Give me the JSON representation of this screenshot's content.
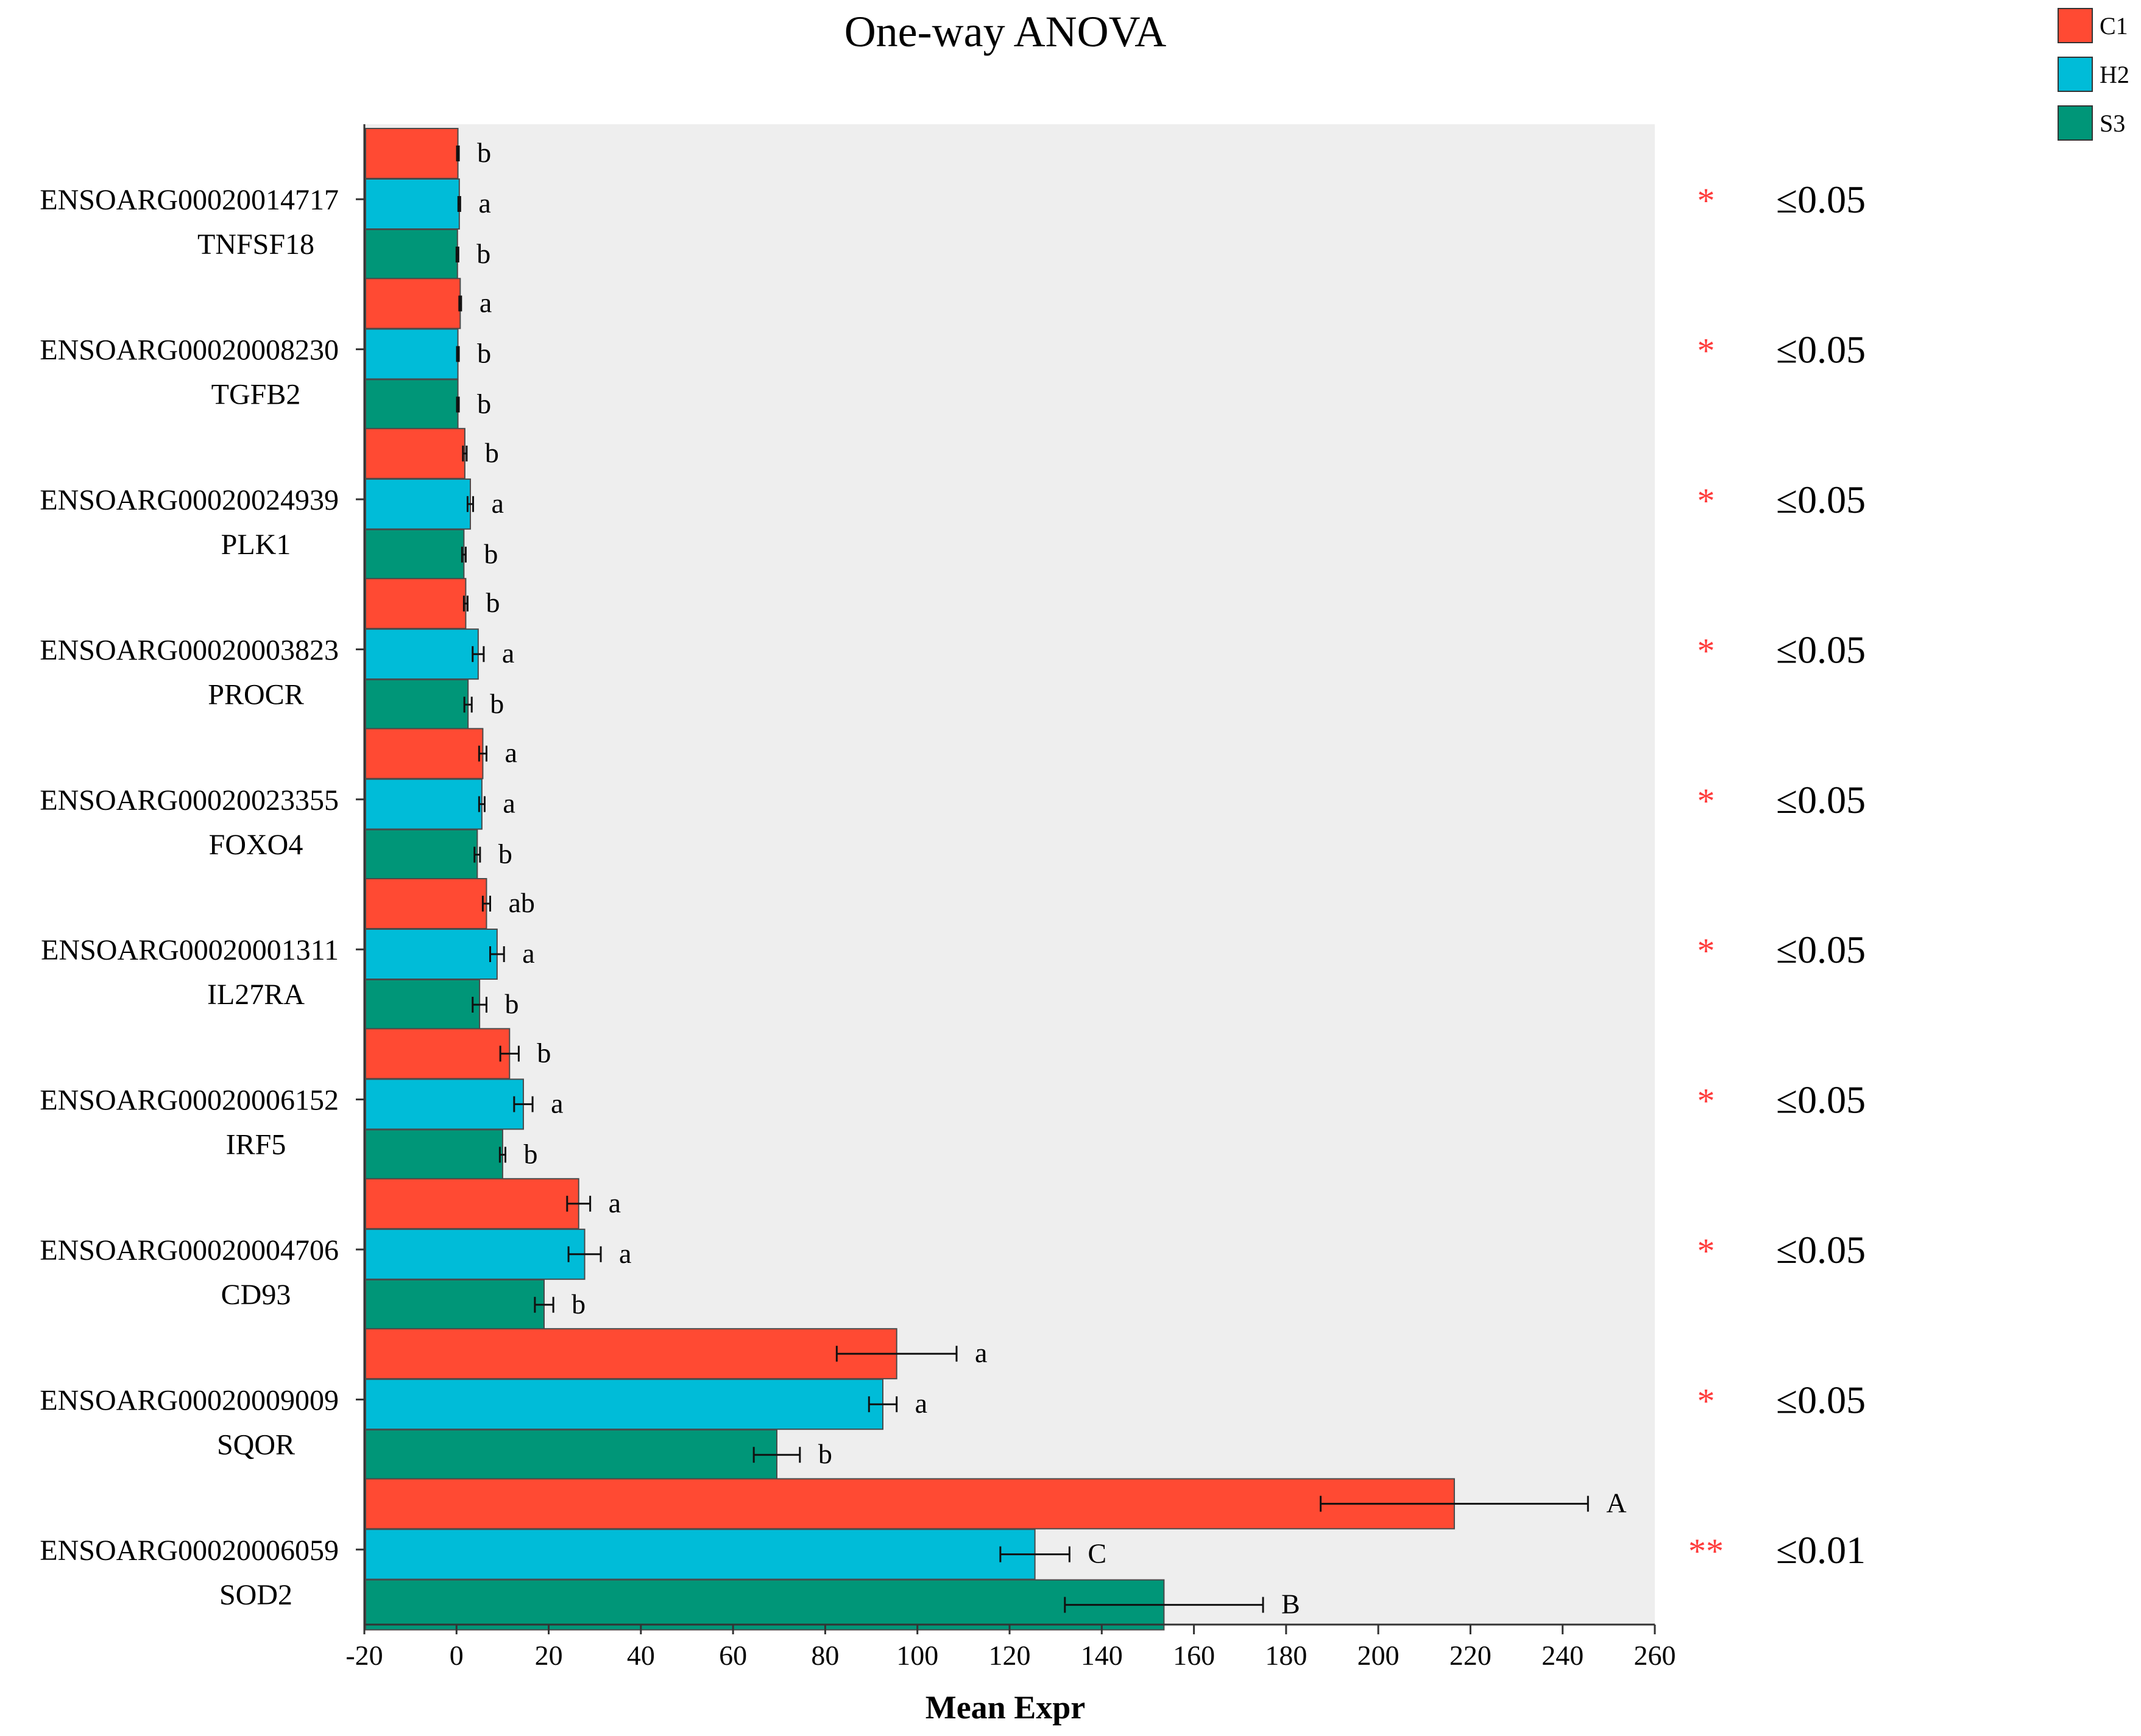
{
  "chart_data": {
    "type": "bar",
    "orientation": "horizontal",
    "title": "One-way ANOVA",
    "xlabel": "Mean Expr",
    "ylabel": "",
    "xlim": [
      -20,
      260
    ],
    "xticks": [
      -20,
      0,
      20,
      40,
      60,
      80,
      100,
      120,
      140,
      160,
      180,
      200,
      220,
      240,
      260
    ],
    "grid": false,
    "legend": {
      "position": "top-right",
      "entries": [
        {
          "name": "C1",
          "color": "#ff4a33"
        },
        {
          "name": "H2",
          "color": "#00bcd8"
        },
        {
          "name": "S3",
          "color": "#009678"
        }
      ]
    },
    "groups": [
      {
        "id": "ENSOARG00020014717",
        "gene": "TNFSF18",
        "values": [
          0.3,
          0.6,
          0.2
        ],
        "errors": [
          0.2,
          0.2,
          0.2
        ],
        "letters": [
          "b",
          "a",
          "b"
        ],
        "stars": "*",
        "pvalue": "≤0.05"
      },
      {
        "id": "ENSOARG00020008230",
        "gene": "TGFB2",
        "values": [
          0.8,
          0.3,
          0.3
        ],
        "errors": [
          0.2,
          0.2,
          0.2
        ],
        "letters": [
          "a",
          "b",
          "b"
        ],
        "stars": "*",
        "pvalue": "≤0.05"
      },
      {
        "id": "ENSOARG00020024939",
        "gene": "PLK1",
        "values": [
          1.8,
          3.0,
          1.6
        ],
        "errors": [
          0.4,
          0.6,
          0.4
        ],
        "letters": [
          "b",
          "a",
          "b"
        ],
        "stars": "*",
        "pvalue": "≤0.05"
      },
      {
        "id": "ENSOARG00020003823",
        "gene": "PROCR",
        "values": [
          2.0,
          4.7,
          2.5
        ],
        "errors": [
          0.4,
          1.2,
          0.8
        ],
        "letters": [
          "b",
          "a",
          "b"
        ],
        "stars": "*",
        "pvalue": "≤0.05"
      },
      {
        "id": "ENSOARG00020023355",
        "gene": "FOXO4",
        "values": [
          5.7,
          5.5,
          4.5
        ],
        "errors": [
          0.8,
          0.6,
          0.6
        ],
        "letters": [
          "a",
          "a",
          "b"
        ],
        "stars": "*",
        "pvalue": "≤0.05"
      },
      {
        "id": "ENSOARG00020001311",
        "gene": "IL27RA",
        "values": [
          6.5,
          8.8,
          5.0
        ],
        "errors": [
          0.8,
          1.5,
          1.5
        ],
        "letters": [
          "ab",
          "a",
          "b"
        ],
        "stars": "*",
        "pvalue": "≤0.05"
      },
      {
        "id": "ENSOARG00020006152",
        "gene": "IRF5",
        "values": [
          11.5,
          14.5,
          10.0
        ],
        "errors": [
          2.0,
          2.0,
          0.6
        ],
        "letters": [
          "b",
          "a",
          "b"
        ],
        "stars": "*",
        "pvalue": "≤0.05"
      },
      {
        "id": "ENSOARG00020004706",
        "gene": "CD93",
        "values": [
          26.5,
          27.8,
          19.0
        ],
        "errors": [
          2.5,
          3.5,
          2.0
        ],
        "letters": [
          "a",
          "a",
          "b"
        ],
        "stars": "*",
        "pvalue": "≤0.05"
      },
      {
        "id": "ENSOARG00020009009",
        "gene": "SQOR",
        "values": [
          95.5,
          92.5,
          69.5
        ],
        "errors": [
          13.0,
          3.0,
          5.0
        ],
        "letters": [
          "a",
          "a",
          "b"
        ],
        "stars": "*",
        "pvalue": "≤0.05"
      },
      {
        "id": "ENSOARG00020006059",
        "gene": "SOD2",
        "values": [
          216.5,
          125.5,
          153.5
        ],
        "errors": [
          29.0,
          7.5,
          21.5
        ],
        "letters": [
          "A",
          "C",
          "B"
        ],
        "stars": "**",
        "pvalue": "≤0.01"
      }
    ]
  }
}
